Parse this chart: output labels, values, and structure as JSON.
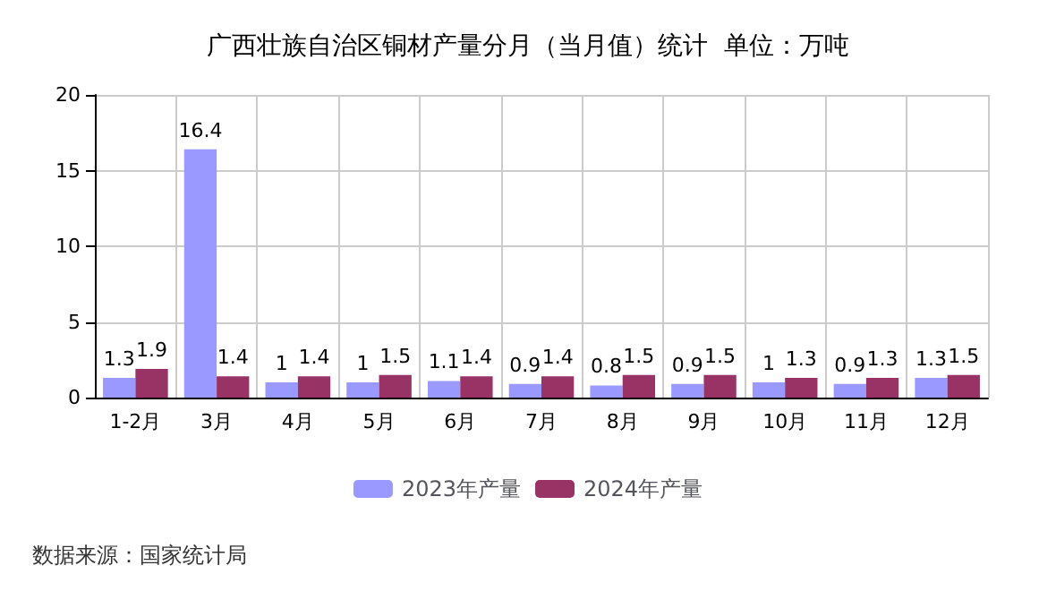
{
  "chart_data": {
    "type": "bar",
    "title": "广西壮族自治区铜材产量分月（当月值）统计  单位：万吨",
    "categories": [
      "1-2月",
      "3月",
      "4月",
      "5月",
      "6月",
      "7月",
      "8月",
      "9月",
      "10月",
      "11月",
      "12月"
    ],
    "series": [
      {
        "name": "2023年产量",
        "color": "#9999ff",
        "values": [
          1.3,
          16.4,
          1,
          1,
          1.1,
          0.9,
          0.8,
          0.9,
          1,
          0.9,
          1.3
        ]
      },
      {
        "name": "2024年产量",
        "color": "#993366",
        "values": [
          1.9,
          1.4,
          1.4,
          1.5,
          1.4,
          1.4,
          1.5,
          1.5,
          1.3,
          1.3,
          1.5
        ]
      }
    ],
    "ylim": [
      0,
      20
    ],
    "yticks": [
      0,
      5,
      10,
      15,
      20
    ],
    "grid": true,
    "legend": "bottom",
    "data_labels": true,
    "annotations": [
      "数据来源：国家统计局"
    ]
  }
}
